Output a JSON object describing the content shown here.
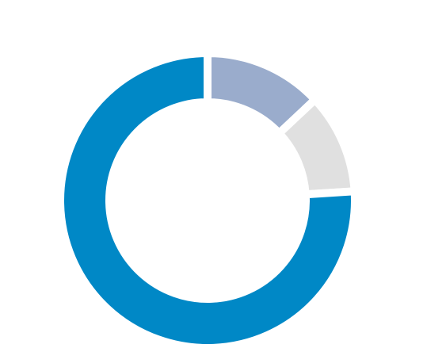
{
  "chart_data": {
    "type": "pie",
    "donut": true,
    "title": "",
    "series": [
      {
        "values": [
          13,
          11,
          76
        ],
        "colors": [
          "#9aaccc",
          "#e0e0e0",
          "#0088c6"
        ]
      }
    ]
  }
}
